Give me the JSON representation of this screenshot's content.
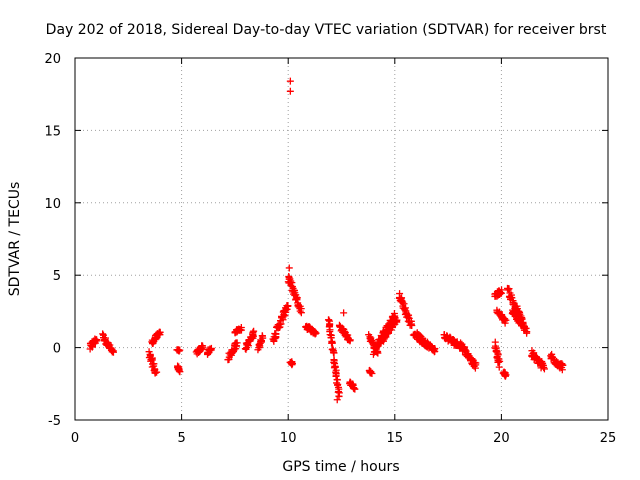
{
  "chart_data": {
    "type": "scatter",
    "title": "Day 202 of 2018, Sidereal Day-to-day VTEC variation (SDTVAR) for receiver brst",
    "xlabel": "GPS time / hours",
    "ylabel": "SDTVAR / TECUs",
    "xlim": [
      0,
      25
    ],
    "ylim": [
      -5,
      20
    ],
    "xticks": [
      0,
      5,
      10,
      15,
      20,
      25
    ],
    "yticks": [
      -5,
      0,
      5,
      10,
      15,
      20
    ],
    "grid": true,
    "marker": "+",
    "color": "#ff0000",
    "segments": [
      {
        "x0": 0.7,
        "x1": 1.0,
        "y0": 0.0,
        "y1": 0.6,
        "spread": 0.5
      },
      {
        "x0": 1.3,
        "x1": 1.8,
        "y0": 0.8,
        "y1": -0.4,
        "spread": 0.4
      },
      {
        "x0": 3.5,
        "x1": 3.8,
        "y0": -0.5,
        "y1": -1.8,
        "spread": 0.5
      },
      {
        "x0": 3.6,
        "x1": 4.0,
        "y0": 0.3,
        "y1": 1.1,
        "spread": 0.3
      },
      {
        "x0": 4.8,
        "x1": 4.9,
        "y0": -1.3,
        "y1": -1.6,
        "spread": 0.2
      },
      {
        "x0": 4.8,
        "x1": 4.9,
        "y0": -0.2,
        "y1": -0.2,
        "spread": 0.1
      },
      {
        "x0": 5.7,
        "x1": 6.0,
        "y0": -0.4,
        "y1": 0.1,
        "spread": 0.3
      },
      {
        "x0": 6.2,
        "x1": 6.4,
        "y0": -0.4,
        "y1": -0.1,
        "spread": 0.3
      },
      {
        "x0": 7.2,
        "x1": 7.6,
        "y0": -0.7,
        "y1": 0.3,
        "spread": 0.4
      },
      {
        "x0": 7.5,
        "x1": 7.8,
        "y0": 1.1,
        "y1": 1.3,
        "spread": 0.2
      },
      {
        "x0": 8.0,
        "x1": 8.4,
        "y0": 0.0,
        "y1": 1.0,
        "spread": 0.4
      },
      {
        "x0": 8.6,
        "x1": 8.8,
        "y0": 0.0,
        "y1": 0.8,
        "spread": 0.3
      },
      {
        "x0": 9.3,
        "x1": 10.0,
        "y0": 0.6,
        "y1": 3.0,
        "spread": 0.5
      },
      {
        "x0": 10.0,
        "x1": 10.6,
        "y0": 4.8,
        "y1": 2.5,
        "spread": 0.5
      },
      {
        "x0": 10.1,
        "x1": 10.2,
        "y0": -1.0,
        "y1": -1.1,
        "spread": 0.2
      },
      {
        "x0": 10.8,
        "x1": 11.3,
        "y0": 1.5,
        "y1": 1.0,
        "spread": 0.3
      },
      {
        "x0": 11.9,
        "x1": 12.4,
        "y0": 2.0,
        "y1": -3.4,
        "spread": 0.4
      },
      {
        "x0": 12.4,
        "x1": 12.9,
        "y0": 1.5,
        "y1": 0.5,
        "spread": 0.3
      },
      {
        "x0": 12.9,
        "x1": 13.1,
        "y0": -2.4,
        "y1": -2.8,
        "spread": 0.2
      },
      {
        "x0": 13.8,
        "x1": 13.9,
        "y0": -1.6,
        "y1": -1.8,
        "spread": 0.1
      },
      {
        "x0": 13.8,
        "x1": 14.2,
        "y0": 0.8,
        "y1": -0.4,
        "spread": 0.3
      },
      {
        "x0": 14.0,
        "x1": 15.0,
        "y0": -0.3,
        "y1": 2.3,
        "spread": 0.4
      },
      {
        "x0": 14.3,
        "x1": 15.1,
        "y0": 0.3,
        "y1": 2.0,
        "spread": 0.4
      },
      {
        "x0": 15.2,
        "x1": 15.8,
        "y0": 3.6,
        "y1": 1.5,
        "spread": 0.4
      },
      {
        "x0": 15.9,
        "x1": 16.6,
        "y0": 1.0,
        "y1": 0.1,
        "spread": 0.4
      },
      {
        "x0": 16.2,
        "x1": 16.9,
        "y0": 0.5,
        "y1": -0.2,
        "spread": 0.3
      },
      {
        "x0": 17.3,
        "x1": 18.2,
        "y0": 0.8,
        "y1": 0.0,
        "spread": 0.4
      },
      {
        "x0": 18.1,
        "x1": 18.8,
        "y0": 0.2,
        "y1": -1.3,
        "spread": 0.4
      },
      {
        "x0": 19.7,
        "x1": 19.9,
        "y0": 0.2,
        "y1": -1.2,
        "spread": 0.4
      },
      {
        "x0": 19.7,
        "x1": 20.0,
        "y0": 3.6,
        "y1": 3.9,
        "spread": 0.3
      },
      {
        "x0": 19.8,
        "x1": 20.2,
        "y0": 2.5,
        "y1": 1.8,
        "spread": 0.3
      },
      {
        "x0": 20.1,
        "x1": 20.2,
        "y0": -1.7,
        "y1": -1.9,
        "spread": 0.2
      },
      {
        "x0": 20.3,
        "x1": 21.2,
        "y0": 4.0,
        "y1": 1.0,
        "spread": 0.5
      },
      {
        "x0": 20.5,
        "x1": 21.0,
        "y0": 2.5,
        "y1": 1.5,
        "spread": 0.3
      },
      {
        "x0": 21.4,
        "x1": 22.0,
        "y0": -0.4,
        "y1": -1.4,
        "spread": 0.5
      },
      {
        "x0": 22.3,
        "x1": 22.9,
        "y0": -0.6,
        "y1": -1.4,
        "spread": 0.5
      }
    ],
    "points": [
      {
        "x": 10.1,
        "y": 18.4
      },
      {
        "x": 10.1,
        "y": 17.7
      },
      {
        "x": 10.05,
        "y": 5.5
      },
      {
        "x": 12.3,
        "y": -3.6
      },
      {
        "x": 12.6,
        "y": 2.4
      }
    ]
  }
}
